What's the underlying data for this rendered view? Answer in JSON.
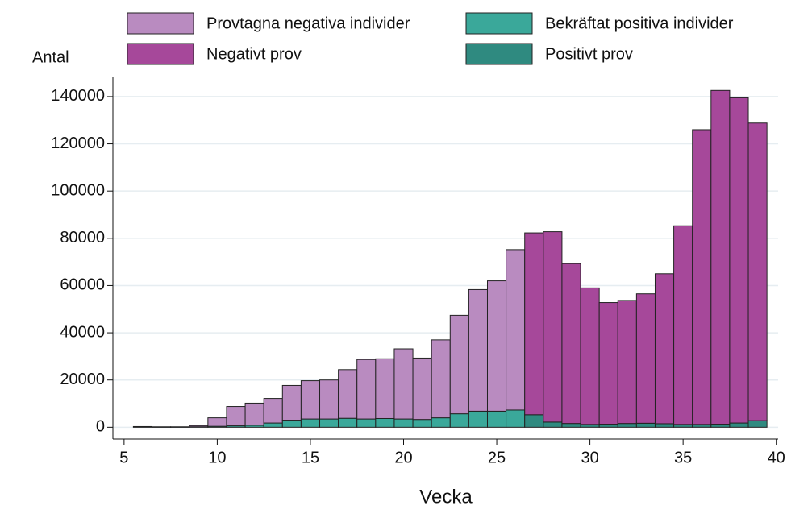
{
  "chart_data": {
    "type": "bar",
    "stacked": true,
    "y_label": "Antal",
    "x_label": "Vecka",
    "x": [
      6,
      7,
      8,
      9,
      10,
      11,
      12,
      13,
      14,
      15,
      16,
      17,
      18,
      19,
      20,
      21,
      22,
      23,
      24,
      25,
      26,
      27,
      28,
      29,
      30,
      31,
      32,
      33,
      34,
      35,
      36,
      37,
      38,
      39
    ],
    "series": [
      {
        "name": "Bekräftat positiva individer",
        "color": "#3aa89a",
        "values": [
          100,
          50,
          50,
          200,
          400,
          600,
          800,
          1800,
          3000,
          3500,
          3500,
          3800,
          3500,
          3700,
          3500,
          3300,
          4000,
          5700,
          6800,
          6800,
          7300,
          null,
          null,
          null,
          null,
          null,
          null,
          null,
          null,
          null,
          null,
          null,
          null,
          null
        ]
      },
      {
        "name": "Positivt prov",
        "color": "#2f8a80",
        "values": [
          null,
          null,
          null,
          null,
          null,
          null,
          null,
          null,
          null,
          null,
          null,
          null,
          null,
          null,
          null,
          null,
          null,
          null,
          null,
          null,
          null,
          5300,
          2200,
          1600,
          1200,
          1300,
          1600,
          1700,
          1500,
          1200,
          1200,
          1300,
          1800,
          2800
        ]
      },
      {
        "name": "Provtagna negativa individer",
        "color": "#b98bc0",
        "values": [
          200,
          150,
          150,
          500,
          3600,
          8200,
          9400,
          10400,
          14700,
          16200,
          16500,
          20600,
          25200,
          25300,
          29700,
          26000,
          33000,
          41700,
          51500,
          55200,
          67900,
          null,
          null,
          null,
          null,
          null,
          null,
          null,
          null,
          null,
          null,
          null,
          null,
          null
        ]
      },
      {
        "name": "Negativt prov",
        "color": "#a6489a",
        "values": [
          null,
          null,
          null,
          null,
          null,
          null,
          null,
          null,
          null,
          null,
          null,
          null,
          null,
          null,
          null,
          null,
          null,
          null,
          null,
          null,
          null,
          77000,
          80600,
          67700,
          57800,
          51500,
          52100,
          54800,
          63500,
          84100,
          124800,
          141300,
          137700,
          126000
        ]
      }
    ],
    "xlim": [
      4.4,
      40.1
    ],
    "xticks": [
      5,
      10,
      15,
      20,
      25,
      30,
      35,
      40
    ],
    "ylim": [
      -5000,
      148500
    ],
    "yticks": [
      0,
      20000,
      40000,
      60000,
      80000,
      100000,
      120000,
      140000
    ],
    "grid": true,
    "legend": "top"
  }
}
